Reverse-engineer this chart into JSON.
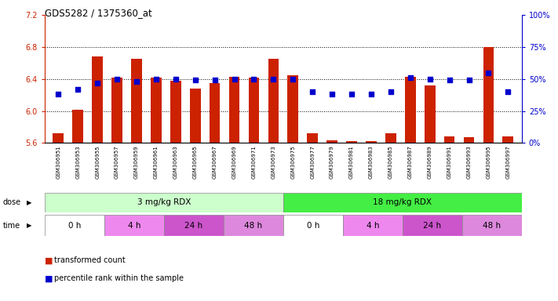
{
  "title": "GDS5282 / 1375360_at",
  "samples": [
    "GSM306951",
    "GSM306953",
    "GSM306955",
    "GSM306957",
    "GSM306959",
    "GSM306961",
    "GSM306963",
    "GSM306965",
    "GSM306967",
    "GSM306969",
    "GSM306971",
    "GSM306973",
    "GSM306975",
    "GSM306977",
    "GSM306979",
    "GSM306981",
    "GSM306983",
    "GSM306985",
    "GSM306987",
    "GSM306989",
    "GSM306991",
    "GSM306993",
    "GSM306995",
    "GSM306997"
  ],
  "bar_values": [
    5.72,
    6.02,
    6.68,
    6.42,
    6.65,
    6.42,
    6.38,
    6.28,
    6.35,
    6.43,
    6.42,
    6.65,
    6.45,
    5.72,
    5.63,
    5.62,
    5.62,
    5.72,
    6.43,
    6.32,
    5.68,
    5.67,
    6.8,
    5.68
  ],
  "blue_values": [
    38,
    42,
    47,
    50,
    48,
    50,
    50,
    49,
    49,
    50,
    50,
    50,
    50,
    40,
    38,
    38,
    38,
    40,
    51,
    50,
    49,
    49,
    55,
    40
  ],
  "ylim_left": [
    5.6,
    7.2
  ],
  "ylim_right": [
    0,
    100
  ],
  "yticks_left": [
    5.6,
    6.0,
    6.4,
    6.8,
    7.2
  ],
  "yticks_right": [
    0,
    25,
    50,
    75,
    100
  ],
  "ytick_labels_right": [
    "0%",
    "25%",
    "50%",
    "75%",
    "100%"
  ],
  "bar_color": "#cc2200",
  "dot_color": "#0000cc",
  "bar_bottom": 5.6,
  "dose_groups": [
    {
      "label": "3 mg/kg RDX",
      "start": 0,
      "end": 12,
      "color": "#ccffcc"
    },
    {
      "label": "18 mg/kg RDX",
      "start": 12,
      "end": 24,
      "color": "#44ee44"
    }
  ],
  "time_groups": [
    {
      "label": "0 h",
      "start": 0,
      "end": 3,
      "color": "#ffffff"
    },
    {
      "label": "4 h",
      "start": 3,
      "end": 6,
      "color": "#ee88ee"
    },
    {
      "label": "24 h",
      "start": 6,
      "end": 9,
      "color": "#cc55cc"
    },
    {
      "label": "48 h",
      "start": 9,
      "end": 12,
      "color": "#dd88dd"
    },
    {
      "label": "0 h",
      "start": 12,
      "end": 15,
      "color": "#ffffff"
    },
    {
      "label": "4 h",
      "start": 15,
      "end": 18,
      "color": "#ee88ee"
    },
    {
      "label": "24 h",
      "start": 18,
      "end": 21,
      "color": "#cc55cc"
    },
    {
      "label": "48 h",
      "start": 21,
      "end": 24,
      "color": "#dd88dd"
    }
  ],
  "bg_color": "#ffffff",
  "sample_bg_color": "#cccccc",
  "grid_yticks": [
    6.0,
    6.4,
    6.8
  ]
}
